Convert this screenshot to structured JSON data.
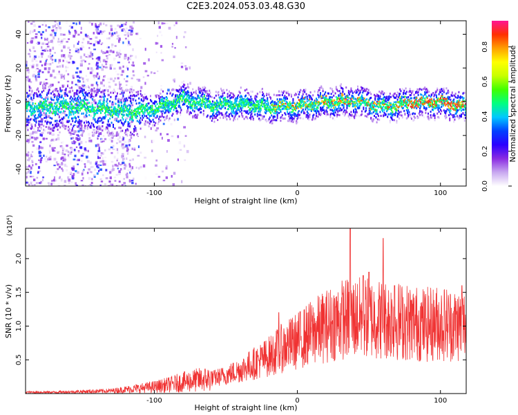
{
  "page": {
    "title": "C2E3.2024.053.03.48.G30"
  },
  "chart_data": [
    {
      "type": "heatmap",
      "title": "C2E3.2024.053.03.48.G30",
      "xlabel": "Height of straight line (km)",
      "ylabel": "Frequency (Hz)",
      "xlim": [
        -190,
        118
      ],
      "ylim": [
        -50,
        48
      ],
      "xticks": [
        -100,
        0,
        100
      ],
      "yticks": [
        -40,
        -20,
        0,
        20,
        40
      ],
      "colorbar": {
        "label": "Normalized spectral amplitude",
        "range": [
          0.0,
          0.95
        ],
        "ticks": [
          "0.0",
          "0.2",
          "0.4",
          "0.6",
          "0.8"
        ],
        "colors": [
          "#ffffff",
          "#c8a8f0",
          "#8a2be2",
          "#2a00ff",
          "#0040ff",
          "#00c8ff",
          "#00ff80",
          "#40ff00",
          "#c8ff00",
          "#ffff00",
          "#ffa000",
          "#ff3000",
          "#ff1493"
        ]
      },
      "ridge": {
        "description_points_x": [
          -190,
          -150,
          -120,
          -100,
          -80,
          -60,
          -40,
          -20,
          0,
          20,
          40,
          60,
          80,
          100,
          118
        ],
        "description_points_y": [
          -3,
          -3,
          -6,
          -4,
          2,
          -2,
          -1,
          -3,
          -2,
          0,
          1,
          -3,
          0,
          0,
          -3
        ]
      }
    },
    {
      "type": "line",
      "xlabel": "Height of straight line (km)",
      "ylabel": "SNR (10 * v/v)",
      "multiplier": "(x10⁴)",
      "xlim": [
        -190,
        118
      ],
      "ylim": [
        0,
        2.45
      ],
      "xticks": [
        -100,
        0,
        100
      ],
      "yticks": [
        0.5,
        1.0,
        1.5,
        2.0
      ],
      "color": "#f03232",
      "series": [
        {
          "name": "",
          "x": [
            -190,
            -170,
            -150,
            -130,
            -120,
            -110,
            -100,
            -90,
            -80,
            -70,
            -60,
            -50,
            -40,
            -30,
            -20,
            -10,
            0,
            10,
            20,
            30,
            40,
            50,
            60,
            70,
            80,
            90,
            100,
            110,
            118
          ],
          "values": [
            0.02,
            0.02,
            0.03,
            0.04,
            0.06,
            0.08,
            0.1,
            0.13,
            0.17,
            0.2,
            0.22,
            0.27,
            0.35,
            0.45,
            0.55,
            0.68,
            0.78,
            0.9,
            1.0,
            1.1,
            1.12,
            1.12,
            1.1,
            1.08,
            1.05,
            1.02,
            1.05,
            1.02,
            1.02
          ],
          "peaks": [
            [
              -13,
              1.2
            ],
            [
              37,
              2.45
            ],
            [
              46,
              1.75
            ],
            [
              50,
              1.8
            ],
            [
              60,
              2.3
            ],
            [
              68,
              1.6
            ],
            [
              115,
              1.6
            ]
          ]
        }
      ]
    }
  ]
}
